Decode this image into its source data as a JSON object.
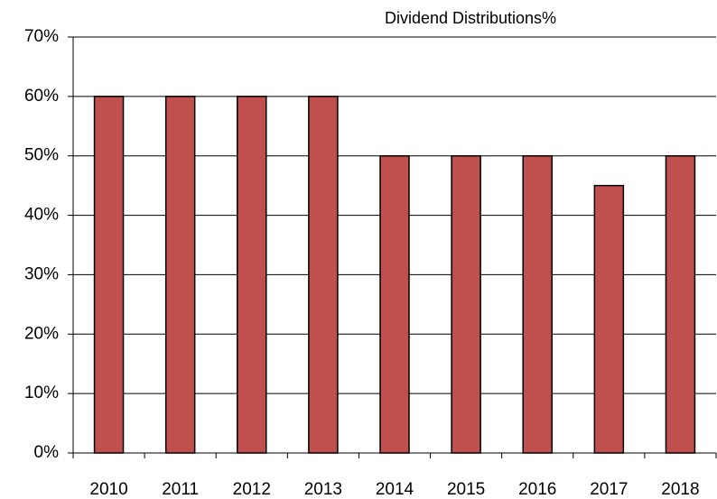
{
  "chart_data": {
    "type": "bar",
    "title": "Dividend Distributions%",
    "categories": [
      "2010",
      "2011",
      "2012",
      "2013",
      "2014",
      "2015",
      "2016",
      "2017",
      "2018"
    ],
    "values": [
      60,
      60,
      60,
      60,
      50,
      50,
      50,
      45,
      50
    ],
    "color": "#c0504d",
    "ylim": [
      0,
      70
    ],
    "yticks": [
      {
        "value": 0,
        "label": "0%"
      },
      {
        "value": 10,
        "label": "10%"
      },
      {
        "value": 20,
        "label": "20%"
      },
      {
        "value": 30,
        "label": "30%"
      },
      {
        "value": 40,
        "label": "40%"
      },
      {
        "value": 50,
        "label": "50%"
      },
      {
        "value": 60,
        "label": "60%"
      },
      {
        "value": 70,
        "label": "70%"
      }
    ],
    "grid": true
  }
}
